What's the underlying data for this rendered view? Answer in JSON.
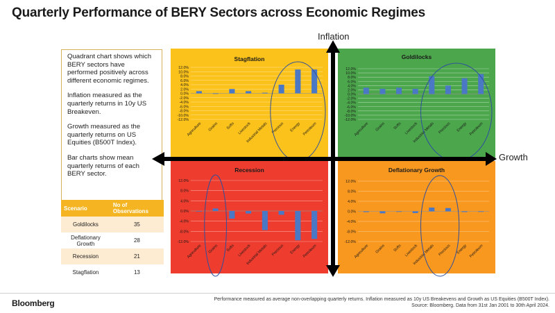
{
  "page": {
    "title": "Quarterly Performance of BERY Sectors across Economic Regimes",
    "axes": {
      "y_label": "Inflation",
      "x_label": "Growth"
    },
    "description": [
      "Quadrant chart shows which BERY sectors have performed positively across different economic regimes.",
      "Inflation measured as the quarterly returns in 10y US Breakeven.",
      "Growth measured as the quarterly returns on US Equities (B500T Index).",
      "Bar charts show mean quarterly returns of each BERY sector."
    ],
    "observations": {
      "headers": [
        "Scenario",
        "No of Observations"
      ],
      "rows": [
        {
          "scenario": "Goldilocks",
          "count": "35"
        },
        {
          "scenario": "Deflationary Growth",
          "count": "28"
        },
        {
          "scenario": "Recession",
          "count": "21"
        },
        {
          "scenario": "Stagflation",
          "count": "13"
        }
      ]
    },
    "footer": {
      "logo": "Bloomberg",
      "note1": "Performance measured as average non-overlapping quarterly returns. Inflation measured as 10y US Breakevens and Growth as US Equities (B500T Index).",
      "note2": "Source: Bloomberg. Data from 31st Jan 2001 to 30th April 2024."
    },
    "colors": {
      "stagflation": "#fbc21b",
      "goldilocks": "#4ca64c",
      "recession": "#ee3c2e",
      "deflationary": "#f9981f",
      "bar": "#4a78c4",
      "highlight": "#2e4f9e"
    }
  },
  "chart_data": [
    {
      "type": "bar",
      "title": "Stagflation",
      "categories": [
        "Agriculture",
        "Grains",
        "Softs",
        "Livestock",
        "Industrial Metals",
        "Precious",
        "Energy",
        "Petroleum"
      ],
      "values": [
        1.0,
        0.0,
        2.0,
        1.0,
        0.3,
        4.0,
        11.0,
        11.0
      ],
      "ylim": [
        -12,
        12
      ],
      "yticks": [
        "12.0%",
        "10.0%",
        "8.0%",
        "6.0%",
        "4.0%",
        "2.0%",
        "0.0%",
        "-2.0%",
        "-4.0%",
        "-6.0%",
        "-8.0%",
        "-10.0%",
        "-12.0%"
      ],
      "highlighted": [
        "Precious",
        "Energy",
        "Petroleum"
      ]
    },
    {
      "type": "bar",
      "title": "Goldilocks",
      "categories": [
        "Agriculture",
        "Grains",
        "Softs",
        "Livestock",
        "Industrial Metals",
        "Precious",
        "Energy",
        "Petroleum"
      ],
      "values": [
        3.0,
        2.5,
        3.0,
        2.5,
        8.5,
        4.0,
        7.5,
        9.5
      ],
      "ylim": [
        -12,
        12
      ],
      "yticks": [
        "12.0%",
        "10.0%",
        "8.0%",
        "6.0%",
        "4.0%",
        "2.0%",
        "0.0%",
        "-2.0%",
        "-4.0%",
        "-6.0%",
        "-8.0%",
        "-10.0%",
        "-12.0%"
      ],
      "highlighted": [
        "Industrial Metals",
        "Precious",
        "Energy",
        "Petroleum"
      ]
    },
    {
      "type": "bar",
      "title": "Recession",
      "categories": [
        "Agriculture",
        "Grains",
        "Softs",
        "Livestock",
        "Industrial Metals",
        "Precious",
        "Energy",
        "Petroleum"
      ],
      "values": [
        0.0,
        1.0,
        -3.0,
        -1.0,
        -7.5,
        -1.5,
        -11.5,
        -11.0
      ],
      "ylim": [
        -12,
        12
      ],
      "yticks": [
        "12.0%",
        "8.0%",
        "4.0%",
        "0.0%",
        "-4.0%",
        "-8.0%",
        "-12.0%"
      ],
      "highlighted": [
        "Grains"
      ]
    },
    {
      "type": "bar",
      "title": "Deflationary Growth",
      "categories": [
        "Agriculture",
        "Grains",
        "Softs",
        "Livestock",
        "Industrial Metals",
        "Precious",
        "Energy",
        "Petroleum"
      ],
      "values": [
        -0.3,
        -0.8,
        -0.2,
        -0.7,
        1.5,
        1.3,
        -0.3,
        -0.1
      ],
      "ylim": [
        -12,
        12
      ],
      "yticks": [
        "12.0%",
        "8.0%",
        "4.0%",
        "0.0%",
        "-4.0%",
        "-8.0%",
        "-12.0%"
      ],
      "highlighted": [
        "Industrial Metals",
        "Precious"
      ]
    }
  ]
}
